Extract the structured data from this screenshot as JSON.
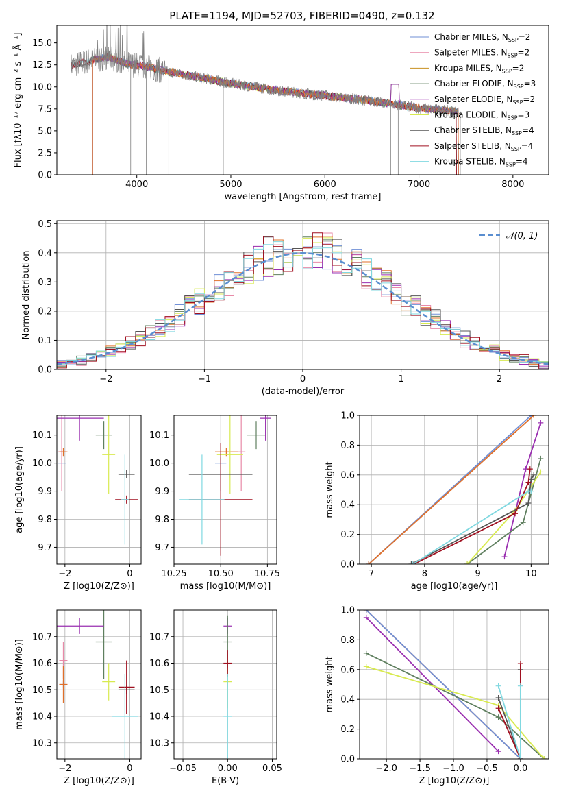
{
  "figure": {
    "title": "PLATE=1194, MJD=52703, FIBERID=0490, z=0.132"
  },
  "colors": {
    "Chabrier MILES": "#6f8fd6",
    "Salpeter MILES": "#e88aa8",
    "Kroupa MILES": "#c89020",
    "Chabrier ELODIE": "#5f7f5f",
    "Salpeter ELODIE": "#9a2fb0",
    "Kroupa ELODIE": "#d8ea50",
    "Chabrier STELIB": "#555555",
    "Salpeter STELIB": "#a01020",
    "Kroupa STELIB": "#80d8e0",
    "observed": "#808080",
    "orange": "#e0702a",
    "gauss": "#5a8ed0"
  },
  "chart_data": [
    {
      "type": "line",
      "panel": "spectrum",
      "xlabel": "wavelength [Angstrom, rest frame]",
      "ylabel": "Flux [fλ10⁻¹⁷ erg cm⁻² s⁻¹ Å⁻¹]",
      "xlim": [
        3150,
        8380
      ],
      "ylim": [
        0,
        17
      ],
      "xticks": [
        4000,
        5000,
        6000,
        7000,
        8000
      ],
      "yticks": [
        0.0,
        2.5,
        5.0,
        7.5,
        10.0,
        12.5,
        15.0
      ],
      "legend": "top-right",
      "series": [
        {
          "name": "Chabrier MILES, N",
          "sub": "SSP",
          "tail": "=2",
          "color": "#6f8fd6"
        },
        {
          "name": "Salpeter MILES, N",
          "sub": "SSP",
          "tail": "=2",
          "color": "#e88aa8"
        },
        {
          "name": "Kroupa MILES, N",
          "sub": "SSP",
          "tail": "=2",
          "color": "#c89020"
        },
        {
          "name": "Chabrier ELODIE, N",
          "sub": "SSP",
          "tail": "=3",
          "color": "#5f7f5f"
        },
        {
          "name": "Salpeter ELODIE, N",
          "sub": "SSP",
          "tail": "=2",
          "color": "#9a2fb0"
        },
        {
          "name": "Kroupa ELODIE, N",
          "sub": "SSP",
          "tail": "=3",
          "color": "#d8ea50"
        },
        {
          "name": "Chabrier STELIB, N",
          "sub": "SSP",
          "tail": "=4",
          "color": "#555555"
        },
        {
          "name": "Salpeter STELIB, N",
          "sub": "SSP",
          "tail": "=4",
          "color": "#a01020"
        },
        {
          "name": "Kroupa STELIB, N",
          "sub": "SSP",
          "tail": "=4",
          "color": "#80d8e0"
        }
      ],
      "continuum": {
        "x": [
          3300,
          3500,
          3700,
          3900,
          4100,
          4300,
          4500,
          5000,
          5500,
          6000,
          6500,
          7000,
          7400
        ],
        "y": [
          12.4,
          13.0,
          13.4,
          12.6,
          12.3,
          11.8,
          11.4,
          10.4,
          9.6,
          9.0,
          8.4,
          7.6,
          7.2
        ]
      }
    },
    {
      "type": "line",
      "panel": "residuals",
      "xlabel": "(data-model)/error",
      "ylabel": "Normed distribution",
      "xlim": [
        -2.5,
        2.5
      ],
      "ylim": [
        0,
        0.51
      ],
      "xticks": [
        -2,
        -1,
        0,
        1,
        2
      ],
      "yticks": [
        0.0,
        0.1,
        0.2,
        0.3,
        0.4,
        0.5
      ],
      "legend": "top-right",
      "gauss_label": "𝒩(0, 1)"
    },
    {
      "type": "scatter",
      "panel": "age-vs-Z",
      "xlabel": "Z [log10(Z/Z⊙)]",
      "ylabel": "age  [log10(age/yr)]",
      "xlim": [
        -2.25,
        0.35
      ],
      "ylim": [
        9.64,
        10.17
      ],
      "xticks": [
        -2,
        0
      ],
      "yticks": [
        9.7,
        9.8,
        9.9,
        10.0,
        10.1
      ],
      "points": [
        {
          "series": "Chabrier MILES",
          "x": -2.1,
          "y": 10.0,
          "xerr": 0.1,
          "yerr": 0.0
        },
        {
          "series": "Salpeter MILES",
          "x": -2.1,
          "y": 10.04,
          "xerr": 0.0,
          "yerr": 0.14
        },
        {
          "series": "Kroupa MILES",
          "x": -2.05,
          "y": 10.04,
          "xerr": 0.1,
          "yerr": 0.0
        },
        {
          "series": "Chabrier ELODIE",
          "x": -0.8,
          "y": 10.1,
          "xerr": 0.25,
          "yerr": 0.05
        },
        {
          "series": "Salpeter ELODIE",
          "x": -1.55,
          "y": 10.16,
          "xerr": 0.75,
          "yerr": 0.08
        },
        {
          "series": "Kroupa ELODIE",
          "x": -0.65,
          "y": 10.03,
          "xerr": 0.2,
          "yerr": 0.14
        },
        {
          "series": "Chabrier STELIB",
          "x": -0.1,
          "y": 9.96,
          "xerr": 0.25,
          "yerr": 0.0
        },
        {
          "series": "Salpeter STELIB",
          "x": -0.1,
          "y": 9.87,
          "xerr": 0.35,
          "yerr": 0.0
        },
        {
          "series": "Kroupa STELIB",
          "x": -0.15,
          "y": 9.87,
          "xerr": 0.0,
          "yerr": 0.16
        }
      ]
    },
    {
      "type": "scatter",
      "panel": "age-vs-mass",
      "xlabel": "mass [log10(M/M⊙)]",
      "xlim": [
        10.25,
        10.8
      ],
      "ylim": [
        9.64,
        10.17
      ],
      "xticks": [
        10.25,
        10.5,
        10.75
      ],
      "yticks": [
        9.7,
        9.8,
        9.9,
        10.0,
        10.1
      ],
      "points": [
        {
          "series": "Chabrier MILES",
          "x": 10.5,
          "y": 10.0,
          "xerr": 0.03,
          "yerr": 0.0
        },
        {
          "series": "Salpeter MILES",
          "x": 10.61,
          "y": 10.04,
          "xerr": 0.0,
          "yerr": 0.14
        },
        {
          "series": "Kroupa MILES",
          "x": 10.53,
          "y": 10.04,
          "xerr": 0.06,
          "yerr": 0.0
        },
        {
          "series": "Chabrier ELODIE",
          "x": 10.69,
          "y": 10.1,
          "xerr": 0.05,
          "yerr": 0.05
        },
        {
          "series": "Salpeter ELODIE",
          "x": 10.74,
          "y": 10.16,
          "xerr": 0.03,
          "yerr": 0.08
        },
        {
          "series": "Kroupa ELODIE",
          "x": 10.55,
          "y": 10.03,
          "xerr": 0.07,
          "yerr": 0.14
        },
        {
          "series": "Chabrier STELIB",
          "x": 10.5,
          "y": 9.96,
          "xerr": 0.17,
          "yerr": 0.06
        },
        {
          "series": "Salpeter STELIB",
          "x": 10.5,
          "y": 9.87,
          "xerr": 0.17,
          "yerr": 0.2
        },
        {
          "series": "Kroupa STELIB",
          "x": 10.4,
          "y": 9.87,
          "xerr": 0.12,
          "yerr": 0.16
        }
      ]
    },
    {
      "type": "line",
      "panel": "mass-weight-vs-age",
      "xlabel": "age  [log10(age/yr)]",
      "ylabel": "mass weight",
      "xlim": [
        6.78,
        10.33
      ],
      "ylim": [
        0,
        1.0
      ],
      "xticks": [
        7,
        8,
        9,
        10
      ],
      "yticks": [
        0.0,
        0.2,
        0.4,
        0.6,
        0.8,
        1.0
      ],
      "series": [
        {
          "series": "Chabrier MILES",
          "x": [
            6.95,
            10.0
          ],
          "y": [
            0.0,
            1.0
          ]
        },
        {
          "series": "Kroupa MILES",
          "x": [
            6.95,
            10.05
          ],
          "y": [
            0.0,
            1.0
          ]
        },
        {
          "series": "Salpeter ELODIE",
          "x": [
            9.5,
            9.9,
            10.18
          ],
          "y": [
            0.05,
            0.64,
            0.95
          ]
        },
        {
          "series": "Chabrier ELODIE",
          "x": [
            8.8,
            9.85,
            10.18
          ],
          "y": [
            0.0,
            0.28,
            0.71
          ]
        },
        {
          "series": "Kroupa ELODIE",
          "x": [
            8.8,
            9.7,
            10.18
          ],
          "y": [
            0.0,
            0.36,
            0.62
          ]
        },
        {
          "series": "Chabrier STELIB",
          "x": [
            7.75,
            9.95,
            10.0,
            10.05
          ],
          "y": [
            0.0,
            0.41,
            0.57,
            0.6
          ]
        },
        {
          "series": "Salpeter STELIB",
          "x": [
            7.8,
            9.7,
            9.95,
            9.98
          ],
          "y": [
            0.0,
            0.34,
            0.55,
            0.64
          ]
        },
        {
          "series": "Kroupa STELIB",
          "x": [
            7.78,
            9.95,
            10.0
          ],
          "y": [
            0.0,
            0.49,
            0.49
          ]
        }
      ]
    },
    {
      "type": "scatter",
      "panel": "mass-vs-Z",
      "xlabel": "Z [log10(Z/Z⊙)]",
      "ylabel": "mass [log10(M/M⊙)]",
      "xlim": [
        -2.25,
        0.35
      ],
      "ylim": [
        10.24,
        10.8
      ],
      "xticks": [
        -2,
        0
      ],
      "yticks": [
        10.3,
        10.4,
        10.5,
        10.6,
        10.7
      ],
      "points": [
        {
          "series": "Chabrier MILES",
          "x": -2.05,
          "y": 10.52,
          "xerr": 0.1,
          "yerr": 0.0
        },
        {
          "series": "Salpeter MILES",
          "x": -2.05,
          "y": 10.61,
          "xerr": 0.1,
          "yerr": 0.07
        },
        {
          "series": "Kroupa MILES",
          "x": -2.05,
          "y": 10.52,
          "xerr": 0.1,
          "yerr": 0.07
        },
        {
          "series": "Chabrier ELODIE",
          "x": -0.8,
          "y": 10.68,
          "xerr": 0.25,
          "yerr": 0.14
        },
        {
          "series": "Salpeter ELODIE",
          "x": -1.55,
          "y": 10.74,
          "xerr": 0.75,
          "yerr": 0.03
        },
        {
          "series": "Kroupa ELODIE",
          "x": -0.65,
          "y": 10.53,
          "xerr": 0.2,
          "yerr": 0.07
        },
        {
          "series": "Chabrier STELIB",
          "x": -0.1,
          "y": 10.5,
          "xerr": 0.25,
          "yerr": 0.0
        },
        {
          "series": "Salpeter STELIB",
          "x": -0.1,
          "y": 10.51,
          "xerr": 0.25,
          "yerr": 0.1
        },
        {
          "series": "Kroupa STELIB",
          "x": -0.15,
          "y": 10.4,
          "xerr": 0.4,
          "yerr": 0.16
        }
      ]
    },
    {
      "type": "scatter",
      "panel": "mass-vs-EBV",
      "xlabel": "E(B-V)",
      "xlim": [
        -0.06,
        0.055
      ],
      "ylim": [
        10.24,
        10.8
      ],
      "xticks": [
        -0.05,
        0.0,
        0.05
      ],
      "yticks": [
        10.3,
        10.4,
        10.5,
        10.6,
        10.7
      ],
      "points": [
        {
          "series": "Salpeter ELODIE",
          "x": 0.0,
          "y": 10.74,
          "xerr": 0.0,
          "yerr": 0.03
        },
        {
          "series": "Kroupa ELODIE",
          "x": 0.0,
          "y": 10.53,
          "xerr": 0.0,
          "yerr": 0.1
        },
        {
          "series": "Chabrier ELODIE",
          "x": 0.0,
          "y": 10.68,
          "xerr": 0.0,
          "yerr": 0.1
        },
        {
          "series": "Salpeter STELIB",
          "x": 0.0,
          "y": 10.6,
          "xerr": 0.0,
          "yerr": 0.05
        },
        {
          "series": "Kroupa STELIB",
          "x": 0.0,
          "y": 10.4,
          "xerr": 0.0,
          "yerr": 0.16
        }
      ]
    },
    {
      "type": "line",
      "panel": "mass-weight-vs-Z",
      "xlabel": "Z [log10(Z/Z⊙)]",
      "ylabel": "mass weight",
      "xlim": [
        -2.4,
        0.42
      ],
      "ylim": [
        0,
        1.0
      ],
      "xticks": [
        -2.0,
        -1.5,
        -1.0,
        -0.5,
        0.0
      ],
      "yticks": [
        0.0,
        0.2,
        0.4,
        0.6,
        0.8,
        1.0
      ],
      "series": [
        {
          "series": "Kroupa MILES",
          "x": [
            -2.3,
            0.0
          ],
          "y": [
            1.0,
            0.0
          ]
        },
        {
          "series": "Chabrier MILES",
          "x": [
            -2.3,
            0.0
          ],
          "y": [
            1.0,
            0.0
          ]
        },
        {
          "series": "Salpeter ELODIE",
          "x": [
            -2.3,
            -0.33
          ],
          "y": [
            0.95,
            0.05
          ]
        },
        {
          "series": "Chabrier ELODIE",
          "x": [
            -2.3,
            -0.33,
            0.35
          ],
          "y": [
            0.71,
            0.28,
            0.0
          ]
        },
        {
          "series": "Kroupa ELODIE",
          "x": [
            -2.3,
            -0.33,
            0.35
          ],
          "y": [
            0.62,
            0.36,
            0.0
          ]
        },
        {
          "series": "Chabrier STELIB",
          "x": [
            -0.33,
            0.0,
            0.0
          ],
          "y": [
            0.41,
            0.0,
            0.6
          ]
        },
        {
          "series": "Salpeter STELIB",
          "x": [
            -0.33,
            0.0,
            0.0
          ],
          "y": [
            0.34,
            0.0,
            0.64
          ]
        },
        {
          "series": "Kroupa STELIB",
          "x": [
            -0.33,
            0.0,
            0.0
          ],
          "y": [
            0.49,
            0.0,
            0.49
          ]
        }
      ]
    }
  ]
}
